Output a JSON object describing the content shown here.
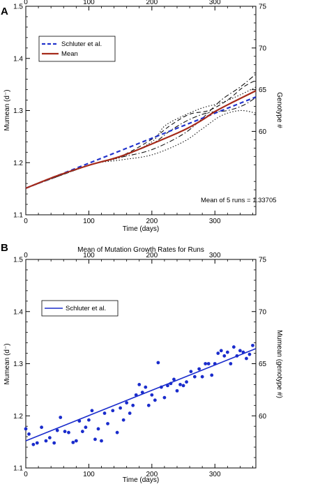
{
  "chart_data": [
    {
      "panel_label": "A",
      "type": "line",
      "title": "",
      "xlabel": "Time (days)",
      "ylabel": "Mumean (d⁻)",
      "y2label": "Genotype #",
      "xlim": [
        0,
        365
      ],
      "ylim": [
        1.1,
        1.5
      ],
      "y2lim": [
        50,
        75
      ],
      "x_ticks": [
        0,
        100,
        200,
        300
      ],
      "y_ticks": [
        1.1,
        1.2,
        1.3,
        1.4,
        1.5
      ],
      "y_tick_labels": [
        "1.1",
        "1.2",
        "1.3",
        "1.4",
        "1.5"
      ],
      "y2_ticks": [
        60,
        65,
        70,
        75
      ],
      "top_ticks": [
        0,
        100,
        200,
        300
      ],
      "legend_position": "top-left",
      "annotation": "Mean of 5 runs =  1.33705",
      "series": [
        {
          "name": "Schluter et al.",
          "color": "#2233cc",
          "style": "dashed",
          "x": [
            0,
            365
          ],
          "y": [
            1.151,
            1.326
          ]
        },
        {
          "name": "Mean",
          "color": "#a52a1a",
          "style": "solid",
          "x": [
            0,
            50,
            100,
            150,
            200,
            250,
            280,
            300,
            330,
            365
          ],
          "y": [
            1.151,
            1.175,
            1.195,
            1.212,
            1.236,
            1.262,
            1.282,
            1.298,
            1.317,
            1.338
          ]
        },
        {
          "color": "#111111",
          "style": "dashdot",
          "x": [
            0,
            100,
            150,
            200,
            230,
            260,
            290,
            320,
            345,
            365
          ],
          "y": [
            1.151,
            1.195,
            1.212,
            1.236,
            1.262,
            1.283,
            1.296,
            1.3,
            1.31,
            1.325
          ]
        },
        {
          "color": "#111111",
          "style": "dashdot",
          "x": [
            0,
            100,
            150,
            200,
            250,
            280,
            310,
            340,
            365
          ],
          "y": [
            1.151,
            1.195,
            1.21,
            1.225,
            1.255,
            1.285,
            1.32,
            1.345,
            1.37
          ]
        },
        {
          "color": "#111111",
          "style": "dashed",
          "x": [
            0,
            100,
            150,
            200,
            230,
            260,
            290,
            320,
            345,
            365
          ],
          "y": [
            1.151,
            1.195,
            1.212,
            1.245,
            1.272,
            1.293,
            1.3,
            1.32,
            1.345,
            1.358
          ]
        },
        {
          "color": "#111111",
          "style": "dotted",
          "x": [
            0,
            100,
            150,
            200,
            220,
            250,
            280,
            310,
            340,
            365
          ],
          "y": [
            1.151,
            1.195,
            1.21,
            1.24,
            1.27,
            1.29,
            1.305,
            1.315,
            1.33,
            1.345
          ]
        },
        {
          "color": "#111111",
          "style": "dotted",
          "x": [
            0,
            100,
            150,
            200,
            250,
            280,
            310,
            340,
            365
          ],
          "y": [
            1.151,
            1.195,
            1.205,
            1.215,
            1.24,
            1.265,
            1.29,
            1.3,
            1.295
          ]
        }
      ]
    },
    {
      "panel_label": "B",
      "type": "scatter",
      "title": "Mean of Mutation Growth Rates for Runs",
      "xlabel": "Time (days)",
      "ylabel": "Mumean (d⁻)",
      "y2label": "Mumean (genotype #)",
      "xlim": [
        0,
        365
      ],
      "ylim": [
        1.1,
        1.5
      ],
      "y2lim": [
        55,
        75
      ],
      "x_ticks": [
        0,
        100,
        200,
        300
      ],
      "y_ticks": [
        1.1,
        1.2,
        1.3,
        1.4,
        1.5
      ],
      "y_tick_labels": [
        "1.1",
        "1.2",
        "1.3",
        "1.4",
        "1.5"
      ],
      "y2_ticks": [
        60,
        65,
        70,
        75
      ],
      "top_ticks": [
        0,
        100,
        200,
        300
      ],
      "legend_position": "top-left",
      "fit_line": {
        "name": "Schluter et al.",
        "color": "#1a2ccc",
        "x": [
          0,
          365
        ],
        "y": [
          1.152,
          1.329
        ]
      },
      "points_color": "#1a2ccc",
      "points": {
        "x": [
          0,
          5,
          12,
          18,
          25,
          32,
          38,
          45,
          50,
          55,
          62,
          68,
          75,
          80,
          85,
          90,
          95,
          100,
          105,
          110,
          115,
          120,
          125,
          130,
          138,
          145,
          150,
          155,
          160,
          165,
          170,
          175,
          180,
          185,
          190,
          195,
          200,
          205,
          210,
          215,
          220,
          225,
          230,
          235,
          240,
          245,
          250,
          255,
          262,
          268,
          275,
          280,
          285,
          290,
          295,
          300,
          305,
          310,
          315,
          320,
          325,
          330,
          335,
          340,
          345,
          350,
          355,
          360
        ],
        "y": [
          1.175,
          1.165,
          1.145,
          1.148,
          1.178,
          1.152,
          1.158,
          1.148,
          1.172,
          1.197,
          1.17,
          1.168,
          1.149,
          1.152,
          1.19,
          1.17,
          1.178,
          1.192,
          1.21,
          1.155,
          1.175,
          1.152,
          1.205,
          1.185,
          1.21,
          1.168,
          1.215,
          1.192,
          1.225,
          1.205,
          1.22,
          1.24,
          1.26,
          1.245,
          1.255,
          1.22,
          1.24,
          1.23,
          1.302,
          1.255,
          1.235,
          1.258,
          1.262,
          1.27,
          1.248,
          1.26,
          1.258,
          1.265,
          1.285,
          1.275,
          1.29,
          1.275,
          1.3,
          1.3,
          1.278,
          1.3,
          1.32,
          1.325,
          1.315,
          1.322,
          1.3,
          1.332,
          1.315,
          1.325,
          1.322,
          1.31,
          1.318,
          1.335
        ]
      }
    }
  ]
}
